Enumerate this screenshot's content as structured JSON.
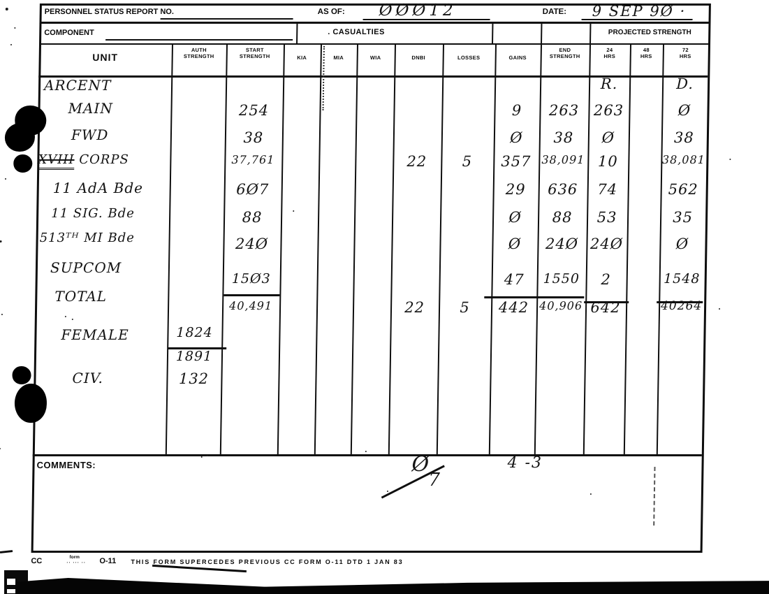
{
  "header": {
    "report_no_label": "PERSONNEL STATUS REPORT NO.",
    "as_of_label": "AS OF:",
    "as_of_value": "ØØØ12",
    "date_label": "DATE:",
    "date_value": "9 SEP 9Ø ·",
    "component_label": "COMPONENT",
    "casualties_label": ". CASUALTIES",
    "projected_strength_label": "PROJECTED STRENGTH"
  },
  "table": {
    "column_headers": [
      "UNIT",
      "AUTH STRENGTH",
      "START STRENGTH",
      "KIA",
      "MIA",
      "WIA",
      "DNBI",
      "LOSSES",
      "GAINS",
      "END STRENGTH",
      "24 HRS",
      "48 HRS",
      "72 HRS"
    ],
    "rows": [
      {
        "unit": "ARCENT",
        "hrs24": "R.",
        "hrs72": "D."
      },
      {
        "unit": "MAIN",
        "start": "254",
        "gains": "9",
        "end": "263",
        "hrs24": "263",
        "hrs72": "Ø"
      },
      {
        "unit": "FWD",
        "start": "38",
        "gains": "Ø",
        "end": "38",
        "hrs24": "Ø",
        "hrs72": "38"
      },
      {
        "unit": "XVIII CORPS",
        "strike_unit": true,
        "start": "37,761",
        "dnbi": "22",
        "losses": "5",
        "gains": "357",
        "end": "38,091",
        "hrs24": "10",
        "hrs72": "38,081"
      },
      {
        "unit": "11 AdA Bde",
        "start": "6Ø7",
        "gains": "29",
        "end": "636",
        "hrs24": "74",
        "hrs72": "562"
      },
      {
        "unit": "11 SIG. Bde",
        "start": "88",
        "gains": "Ø",
        "end": "88",
        "hrs24": "53",
        "hrs72": "35"
      },
      {
        "unit": "513ᵀᴴ MI Bde",
        "start": "24Ø",
        "gains": "Ø",
        "end": "24Ø",
        "hrs24": "24Ø",
        "hrs72": "Ø"
      },
      {
        "unit": "SUPCOM",
        "start": "15Ø3",
        "gains": "47",
        "end": "1550",
        "hrs24": "2",
        "hrs72": "1548"
      },
      {
        "unit": "TOTAL",
        "start": "40,491",
        "dnbi": "22",
        "losses": "5",
        "gains": "442",
        "end": "40,906",
        "hrs24": "642",
        "hrs72": "40264"
      },
      {
        "unit": "FEMALE",
        "auth": "1824"
      },
      {
        "unit": "",
        "auth": "1891"
      },
      {
        "unit": "CIV.",
        "auth": "132"
      }
    ]
  },
  "comments": {
    "label": "COMMENTS:",
    "mark_zero": "Ø",
    "mark_seven": "7",
    "mark_four_three": "4  -3"
  },
  "footer": {
    "cc": "CC",
    "form_small_top": "form",
    "form_small_bottom": "·· ··· ··",
    "form_number": "O-11",
    "note": "THIS FORM SUPERCEDES PREVIOUS CC FORM O-11 DTD 1 JAN 83"
  },
  "colors": {
    "ink": "#0d0d0d",
    "paper": "#ffffff"
  }
}
